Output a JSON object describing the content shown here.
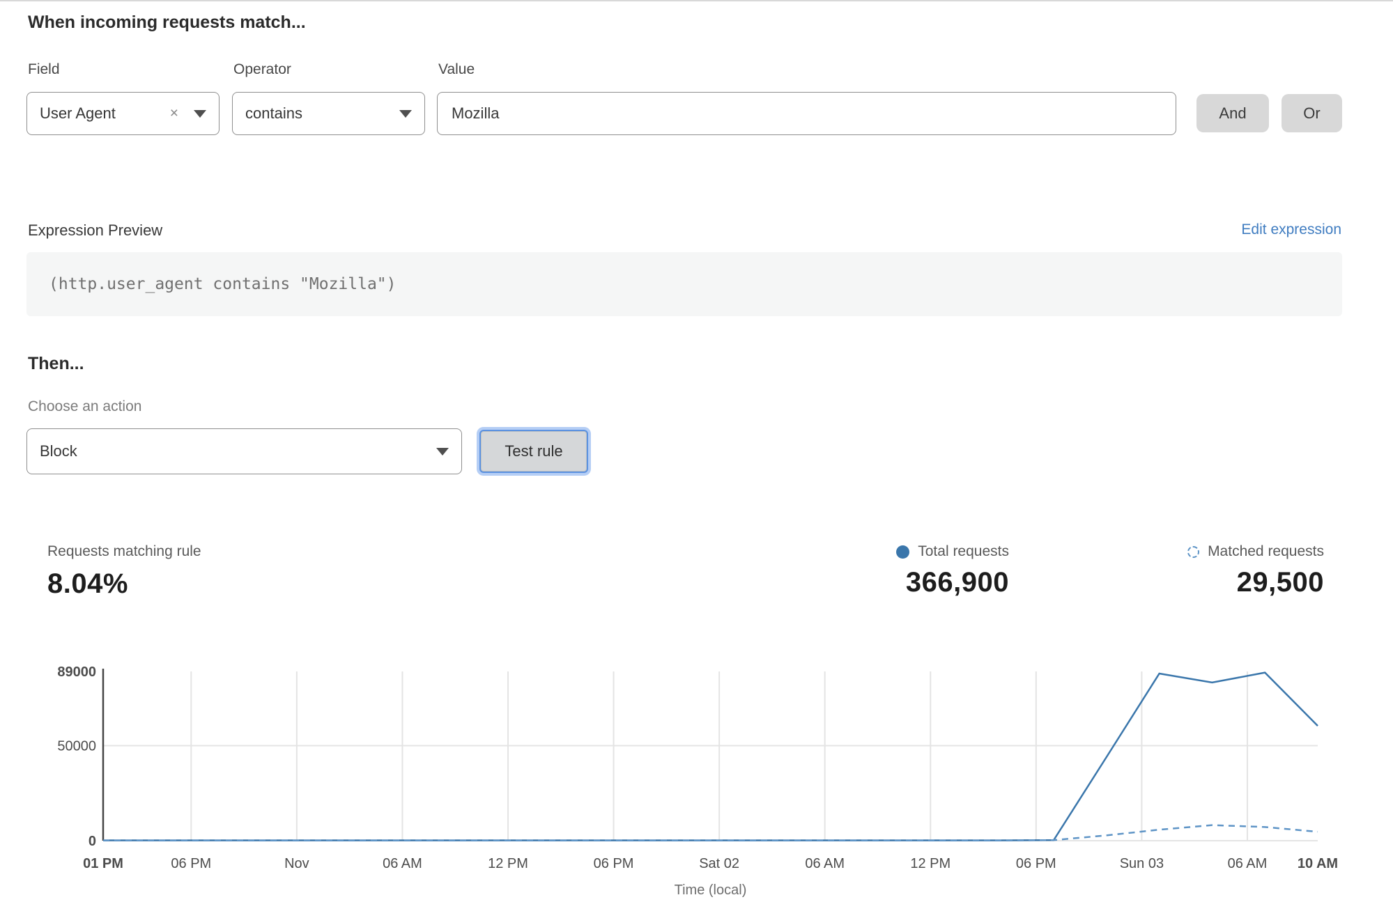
{
  "header": {
    "title": "When incoming requests match..."
  },
  "condition": {
    "field_label": "Field",
    "operator_label": "Operator",
    "value_label": "Value",
    "field_value": "User Agent",
    "operator_value": "contains",
    "value_value": "Mozilla",
    "remove_icon": "×",
    "and_label": "And",
    "or_label": "Or"
  },
  "expression": {
    "label": "Expression Preview",
    "edit_link": "Edit expression",
    "code": "(http.user_agent contains \"Mozilla\")"
  },
  "action": {
    "heading": "Then...",
    "choose_label": "Choose an action",
    "selected_action": "Block",
    "test_button": "Test rule"
  },
  "stats": {
    "matching": {
      "label": "Requests matching rule",
      "value": "8.04%"
    },
    "total": {
      "label": "Total requests",
      "value": "366,900"
    },
    "matched": {
      "label": "Matched requests",
      "value": "29,500"
    }
  },
  "colors": {
    "total_line": "#3a76ab",
    "matched_line": "#5e94c6",
    "grid": "#e4e4e4",
    "axis": "#454545",
    "tick_text": "#4c4c4c",
    "axis_title": "#6d6d6d"
  },
  "chart_data": {
    "type": "line",
    "title": "",
    "xlabel": "Time (local)",
    "ylabel": "",
    "ylim": [
      0,
      89000
    ],
    "x_hours": [
      0,
      3,
      6,
      9,
      12,
      15,
      18,
      21,
      24,
      27,
      30,
      33,
      36,
      39,
      42,
      45,
      48,
      51,
      54,
      57,
      60,
      63,
      66,
      69
    ],
    "series": [
      {
        "name": "Total requests",
        "style": "solid",
        "values": [
          200,
          200,
          200,
          200,
          200,
          200,
          200,
          200,
          200,
          200,
          200,
          200,
          200,
          200,
          200,
          200,
          200,
          200,
          300,
          44000,
          87900,
          83200,
          88400,
          60400
        ]
      },
      {
        "name": "Matched requests",
        "style": "dashed",
        "values": [
          80,
          80,
          80,
          80,
          80,
          80,
          80,
          80,
          80,
          80,
          80,
          80,
          80,
          80,
          80,
          80,
          80,
          80,
          300,
          2800,
          5800,
          8200,
          7200,
          4700
        ]
      }
    ],
    "x_ticks": [
      {
        "t": 0,
        "label": "01 PM",
        "bold": true,
        "grid": false
      },
      {
        "t": 5,
        "label": "06 PM",
        "bold": false,
        "grid": true
      },
      {
        "t": 11,
        "label": "Nov",
        "bold": false,
        "grid": true
      },
      {
        "t": 17,
        "label": "06 AM",
        "bold": false,
        "grid": true
      },
      {
        "t": 23,
        "label": "12 PM",
        "bold": false,
        "grid": true
      },
      {
        "t": 29,
        "label": "06 PM",
        "bold": false,
        "grid": true
      },
      {
        "t": 35,
        "label": "Sat 02",
        "bold": false,
        "grid": true
      },
      {
        "t": 41,
        "label": "06 AM",
        "bold": false,
        "grid": true
      },
      {
        "t": 47,
        "label": "12 PM",
        "bold": false,
        "grid": true
      },
      {
        "t": 53,
        "label": "06 PM",
        "bold": false,
        "grid": true
      },
      {
        "t": 59,
        "label": "Sun 03",
        "bold": false,
        "grid": true
      },
      {
        "t": 65,
        "label": "06 AM",
        "bold": false,
        "grid": true
      },
      {
        "t": 69,
        "label": "10 AM",
        "bold": true,
        "grid": false
      }
    ],
    "y_ticks": [
      {
        "v": 0,
        "label": "0",
        "bold": true,
        "grid": false
      },
      {
        "v": 50000,
        "label": "50000",
        "bold": false,
        "grid": true
      },
      {
        "v": 89000,
        "label": "89000",
        "bold": true,
        "grid": false
      }
    ],
    "legend_position": "top-right-as-stats"
  }
}
